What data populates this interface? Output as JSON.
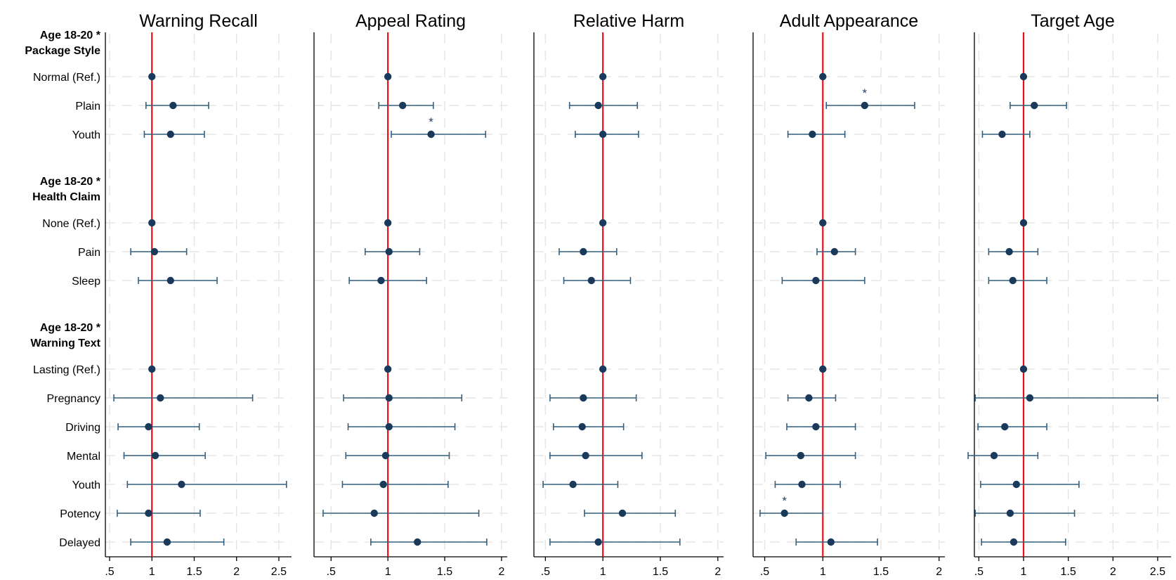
{
  "chart_data": {
    "type": "coefficient-plot",
    "reference_value": 1,
    "reference_line_color": "#e8101a",
    "point_color": "#1a3a5c",
    "ci_color": "#34607f",
    "grid": true,
    "groups": [
      {
        "label_line1": "Age 18-20 *",
        "label_line2": "Package Style",
        "rows": [
          "Normal (Ref.)",
          "Plain",
          "Youth"
        ]
      },
      {
        "label_line1": "Age 18-20 *",
        "label_line2": "Health Claim",
        "rows": [
          "None (Ref.)",
          "Pain",
          "Sleep"
        ]
      },
      {
        "label_line1": "Age 18-20 *",
        "label_line2": "Warning Text",
        "rows": [
          "Lasting (Ref.)",
          "Pregnancy",
          "Driving",
          "Mental",
          "Youth",
          "Potency",
          "Delayed"
        ]
      }
    ],
    "panels": [
      {
        "title": "Warning Recall",
        "xlim": [
          0.45,
          2.65
        ],
        "xticks": [
          0.5,
          1,
          1.5,
          2,
          2.5
        ],
        "xtick_labels": [
          ".5",
          "1",
          "1.5",
          "2",
          "2.5"
        ],
        "estimates": [
          {
            "est": 1.0,
            "lo": null,
            "hi": null,
            "sig": false
          },
          {
            "est": 1.25,
            "lo": 0.93,
            "hi": 1.67,
            "sig": false
          },
          {
            "est": 1.22,
            "lo": 0.91,
            "hi": 1.62,
            "sig": false
          },
          {
            "est": 1.0,
            "lo": null,
            "hi": null,
            "sig": false
          },
          {
            "est": 1.03,
            "lo": 0.75,
            "hi": 1.41,
            "sig": false
          },
          {
            "est": 1.22,
            "lo": 0.84,
            "hi": 1.77,
            "sig": false
          },
          {
            "est": 1.0,
            "lo": null,
            "hi": null,
            "sig": false
          },
          {
            "est": 1.1,
            "lo": 0.55,
            "hi": 2.19,
            "sig": false
          },
          {
            "est": 0.96,
            "lo": 0.6,
            "hi": 1.56,
            "sig": false
          },
          {
            "est": 1.04,
            "lo": 0.67,
            "hi": 1.63,
            "sig": false
          },
          {
            "est": 1.35,
            "lo": 0.71,
            "hi": 2.59,
            "sig": false
          },
          {
            "est": 0.96,
            "lo": 0.59,
            "hi": 1.57,
            "sig": false
          },
          {
            "est": 1.18,
            "lo": 0.75,
            "hi": 1.85,
            "sig": false
          }
        ]
      },
      {
        "title": "Appeal Rating",
        "xlim": [
          0.35,
          2.05
        ],
        "xticks": [
          0.5,
          1,
          1.5,
          2
        ],
        "xtick_labels": [
          ".5",
          "1",
          "1.5",
          "2"
        ],
        "estimates": [
          {
            "est": 1.0,
            "lo": null,
            "hi": null,
            "sig": false
          },
          {
            "est": 1.13,
            "lo": 0.92,
            "hi": 1.4,
            "sig": false
          },
          {
            "est": 1.38,
            "lo": 1.03,
            "hi": 1.86,
            "sig": true
          },
          {
            "est": 1.0,
            "lo": null,
            "hi": null,
            "sig": false
          },
          {
            "est": 1.01,
            "lo": 0.8,
            "hi": 1.28,
            "sig": false
          },
          {
            "est": 0.94,
            "lo": 0.66,
            "hi": 1.34,
            "sig": false
          },
          {
            "est": 1.0,
            "lo": null,
            "hi": null,
            "sig": false
          },
          {
            "est": 1.01,
            "lo": 0.61,
            "hi": 1.65,
            "sig": false
          },
          {
            "est": 1.01,
            "lo": 0.65,
            "hi": 1.59,
            "sig": false
          },
          {
            "est": 0.98,
            "lo": 0.63,
            "hi": 1.54,
            "sig": false
          },
          {
            "est": 0.96,
            "lo": 0.6,
            "hi": 1.53,
            "sig": false
          },
          {
            "est": 0.88,
            "lo": 0.43,
            "hi": 1.8,
            "sig": false
          },
          {
            "est": 1.26,
            "lo": 0.85,
            "hi": 1.87,
            "sig": false
          }
        ]
      },
      {
        "title": "Relative Harm",
        "xlim": [
          0.4,
          2.05
        ],
        "xticks": [
          0.5,
          1,
          1.5,
          2
        ],
        "xtick_labels": [
          ".5",
          "1",
          "1.5",
          "2"
        ],
        "estimates": [
          {
            "est": 1.0,
            "lo": null,
            "hi": null,
            "sig": false
          },
          {
            "est": 0.96,
            "lo": 0.71,
            "hi": 1.3,
            "sig": false
          },
          {
            "est": 1.0,
            "lo": 0.76,
            "hi": 1.31,
            "sig": false
          },
          {
            "est": 1.0,
            "lo": null,
            "hi": null,
            "sig": false
          },
          {
            "est": 0.83,
            "lo": 0.62,
            "hi": 1.12,
            "sig": false
          },
          {
            "est": 0.9,
            "lo": 0.66,
            "hi": 1.24,
            "sig": false
          },
          {
            "est": 1.0,
            "lo": null,
            "hi": null,
            "sig": false
          },
          {
            "est": 0.83,
            "lo": 0.54,
            "hi": 1.29,
            "sig": false
          },
          {
            "est": 0.82,
            "lo": 0.57,
            "hi": 1.18,
            "sig": false
          },
          {
            "est": 0.85,
            "lo": 0.54,
            "hi": 1.34,
            "sig": false
          },
          {
            "est": 0.74,
            "lo": 0.48,
            "hi": 1.13,
            "sig": false
          },
          {
            "est": 1.17,
            "lo": 0.84,
            "hi": 1.63,
            "sig": false
          },
          {
            "est": 0.96,
            "lo": 0.54,
            "hi": 1.67,
            "sig": false
          }
        ]
      },
      {
        "title": "Adult Appearance",
        "xlim": [
          0.4,
          2.05
        ],
        "xticks": [
          0.5,
          1,
          1.5,
          2
        ],
        "xtick_labels": [
          ".5",
          "1",
          "1.5",
          "2"
        ],
        "estimates": [
          {
            "est": 1.0,
            "lo": null,
            "hi": null,
            "sig": false
          },
          {
            "est": 1.36,
            "lo": 1.03,
            "hi": 1.79,
            "sig": true
          },
          {
            "est": 0.91,
            "lo": 0.7,
            "hi": 1.19,
            "sig": false
          },
          {
            "est": 1.0,
            "lo": null,
            "hi": null,
            "sig": false
          },
          {
            "est": 1.1,
            "lo": 0.95,
            "hi": 1.28,
            "sig": false
          },
          {
            "est": 0.94,
            "lo": 0.65,
            "hi": 1.36,
            "sig": false
          },
          {
            "est": 1.0,
            "lo": null,
            "hi": null,
            "sig": false
          },
          {
            "est": 0.88,
            "lo": 0.7,
            "hi": 1.11,
            "sig": false
          },
          {
            "est": 0.94,
            "lo": 0.69,
            "hi": 1.28,
            "sig": false
          },
          {
            "est": 0.81,
            "lo": 0.51,
            "hi": 1.28,
            "sig": false
          },
          {
            "est": 0.82,
            "lo": 0.59,
            "hi": 1.15,
            "sig": false
          },
          {
            "est": 0.67,
            "lo": 0.46,
            "hi": 1.0,
            "sig": true
          },
          {
            "est": 1.07,
            "lo": 0.77,
            "hi": 1.47,
            "sig": false
          }
        ]
      },
      {
        "title": "Target Age",
        "xlim": [
          0.45,
          2.65
        ],
        "xticks": [
          0.5,
          1,
          1.5,
          2,
          2.5
        ],
        "xtick_labels": [
          ".5",
          "1",
          "1.5",
          "2",
          "2.5"
        ],
        "estimates": [
          {
            "est": 1.0,
            "lo": null,
            "hi": null,
            "sig": false
          },
          {
            "est": 1.12,
            "lo": 0.85,
            "hi": 1.48,
            "sig": false
          },
          {
            "est": 0.76,
            "lo": 0.54,
            "hi": 1.07,
            "sig": false
          },
          {
            "est": 1.0,
            "lo": null,
            "hi": null,
            "sig": false
          },
          {
            "est": 0.84,
            "lo": 0.61,
            "hi": 1.16,
            "sig": false
          },
          {
            "est": 0.88,
            "lo": 0.61,
            "hi": 1.26,
            "sig": false
          },
          {
            "est": 1.0,
            "lo": null,
            "hi": null,
            "sig": false
          },
          {
            "est": 1.07,
            "lo": 0.46,
            "hi": 2.5,
            "sig": false
          },
          {
            "est": 0.79,
            "lo": 0.49,
            "hi": 1.26,
            "sig": false
          },
          {
            "est": 0.67,
            "lo": 0.38,
            "hi": 1.16,
            "sig": false
          },
          {
            "est": 0.92,
            "lo": 0.52,
            "hi": 1.62,
            "sig": false
          },
          {
            "est": 0.85,
            "lo": 0.46,
            "hi": 1.57,
            "sig": false
          },
          {
            "est": 0.89,
            "lo": 0.53,
            "hi": 1.47,
            "sig": false
          }
        ]
      }
    ]
  }
}
